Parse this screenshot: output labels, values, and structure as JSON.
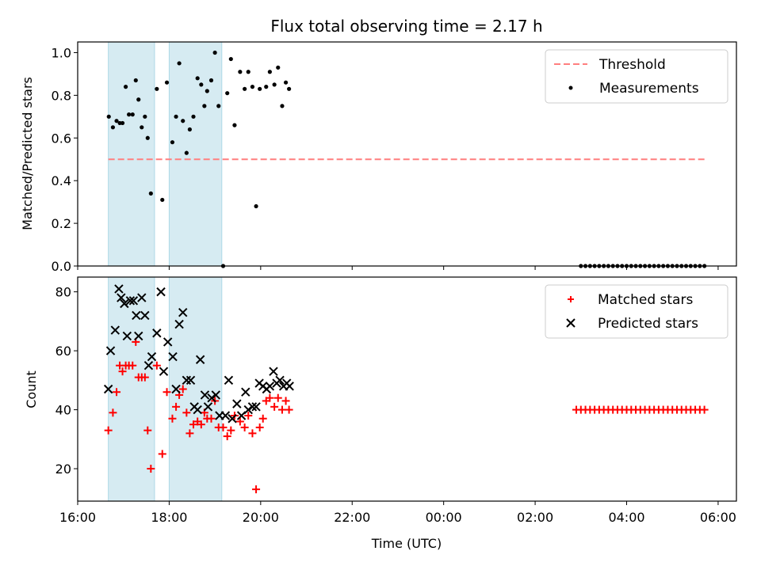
{
  "figure": {
    "title": "Flux total observing time = 2.17 h",
    "xlabel": "Time (UTC)",
    "xticks": [
      "16:00",
      "18:00",
      "20:00",
      "22:00",
      "00:00",
      "02:00",
      "04:00",
      "06:00"
    ]
  },
  "chart_data": [
    {
      "type": "scatter",
      "ylabel": "Matched/Predicted stars",
      "xlim_hours": [
        16.0,
        30.4
      ],
      "ylim": [
        0,
        1.05
      ],
      "yticks": [
        "0.0",
        "0.2",
        "0.4",
        "0.6",
        "0.8",
        "1.0"
      ],
      "shaded_intervals_hours": [
        [
          16.67,
          17.68
        ],
        [
          18.0,
          19.15
        ]
      ],
      "threshold": {
        "name": "Threshold",
        "value": 0.5,
        "x_range_hours": [
          16.67,
          29.75
        ],
        "color": "#ff7f7f"
      },
      "series": [
        {
          "name": "Measurements",
          "color": "#000000",
          "x_hours": [
            16.68,
            16.77,
            16.85,
            16.92,
            16.98,
            17.05,
            17.12,
            17.2,
            17.27,
            17.33,
            17.4,
            17.47,
            17.53,
            17.6,
            17.73,
            17.85,
            17.95,
            18.07,
            18.15,
            18.22,
            18.3,
            18.38,
            18.45,
            18.53,
            18.62,
            18.7,
            18.77,
            18.83,
            18.92,
            19.0,
            19.08,
            19.18,
            19.27,
            19.35,
            19.43,
            19.55,
            19.65,
            19.73,
            19.82,
            19.9,
            19.98,
            20.12,
            20.2,
            20.3,
            20.38,
            20.47,
            20.55,
            20.62,
            27.0,
            27.1,
            27.2,
            27.3,
            27.4,
            27.5,
            27.6,
            27.7,
            27.8,
            27.9,
            28.0,
            28.1,
            28.2,
            28.3,
            28.4,
            28.5,
            28.6,
            28.7,
            28.8,
            28.9,
            29.0,
            29.1,
            29.2,
            29.3,
            29.4,
            29.5,
            29.6,
            29.7
          ],
          "y": [
            0.7,
            0.65,
            0.68,
            0.67,
            0.67,
            0.84,
            0.71,
            0.71,
            0.87,
            0.78,
            0.65,
            0.7,
            0.6,
            0.34,
            0.83,
            0.31,
            0.86,
            0.58,
            0.7,
            0.95,
            0.68,
            0.53,
            0.64,
            0.7,
            0.88,
            0.85,
            0.75,
            0.82,
            0.87,
            1.0,
            0.75,
            0.0,
            0.81,
            0.97,
            0.66,
            0.91,
            0.83,
            0.91,
            0.84,
            0.28,
            0.83,
            0.84,
            0.91,
            0.85,
            0.93,
            0.75,
            0.86,
            0.83,
            0.0,
            0.0,
            0.0,
            0.0,
            0.0,
            0.0,
            0.0,
            0.0,
            0.0,
            0.0,
            0.0,
            0.0,
            0.0,
            0.0,
            0.0,
            0.0,
            0.0,
            0.0,
            0.0,
            0.0,
            0.0,
            0.0,
            0.0,
            0.0,
            0.0,
            0.0,
            0.0,
            0.0
          ]
        }
      ],
      "legend": {
        "position": "top-right",
        "entries": [
          "Threshold",
          "Measurements"
        ]
      }
    },
    {
      "type": "scatter",
      "ylabel": "Count",
      "xlim_hours": [
        16.0,
        30.4
      ],
      "ylim": [
        9,
        85
      ],
      "yticks": [
        "20",
        "40",
        "60",
        "80"
      ],
      "shaded_intervals_hours": [
        [
          16.67,
          17.68
        ],
        [
          18.0,
          19.15
        ]
      ],
      "series": [
        {
          "name": "Matched stars",
          "marker": "plus",
          "color": "#ff0000",
          "x_hours": [
            16.67,
            16.77,
            16.85,
            16.92,
            16.98,
            17.05,
            17.12,
            17.2,
            17.27,
            17.33,
            17.4,
            17.47,
            17.53,
            17.6,
            17.73,
            17.85,
            17.95,
            18.07,
            18.15,
            18.22,
            18.3,
            18.38,
            18.45,
            18.53,
            18.62,
            18.7,
            18.77,
            18.83,
            18.92,
            19.0,
            19.08,
            19.18,
            19.27,
            19.35,
            19.43,
            19.55,
            19.65,
            19.73,
            19.82,
            19.9,
            19.98,
            20.05,
            20.12,
            20.2,
            20.3,
            20.38,
            20.47,
            20.55,
            20.62,
            26.9,
            27.0,
            27.1,
            27.2,
            27.3,
            27.4,
            27.5,
            27.6,
            27.7,
            27.8,
            27.9,
            28.0,
            28.1,
            28.2,
            28.3,
            28.4,
            28.5,
            28.6,
            28.7,
            28.8,
            28.9,
            29.0,
            29.1,
            29.2,
            29.3,
            29.4,
            29.5,
            29.6,
            29.7
          ],
          "y": [
            33,
            39,
            46,
            55,
            53,
            55,
            55,
            55,
            63,
            51,
            51,
            51,
            33,
            20,
            55,
            25,
            46,
            37,
            41,
            45,
            47,
            39,
            32,
            35,
            36,
            35,
            39,
            37,
            37,
            43,
            34,
            34,
            31,
            33,
            38,
            36,
            34,
            38,
            32,
            13,
            34,
            37,
            43,
            44,
            41,
            44,
            40,
            43,
            40,
            40,
            40,
            40,
            40,
            40,
            40,
            40,
            40,
            40,
            40,
            40,
            40,
            40,
            40,
            40,
            40,
            40,
            40,
            40,
            40,
            40,
            40,
            40,
            40,
            40,
            40,
            40,
            40,
            40
          ]
        },
        {
          "name": "Predicted stars",
          "marker": "x",
          "color": "#000000",
          "x_hours": [
            16.67,
            16.72,
            16.82,
            16.9,
            16.95,
            17.02,
            17.08,
            17.15,
            17.22,
            17.28,
            17.33,
            17.4,
            17.47,
            17.55,
            17.62,
            17.73,
            17.82,
            17.88,
            17.97,
            18.08,
            18.15,
            18.22,
            18.3,
            18.38,
            18.47,
            18.55,
            18.62,
            18.68,
            18.78,
            18.85,
            18.93,
            19.02,
            19.1,
            19.23,
            19.3,
            19.38,
            19.48,
            19.58,
            19.67,
            19.73,
            19.82,
            19.9,
            19.97,
            20.05,
            20.13,
            20.2,
            20.28,
            20.35,
            20.42,
            20.5,
            20.57,
            20.63
          ],
          "y": [
            47,
            60,
            67,
            81,
            78,
            76,
            65,
            77,
            77,
            72,
            65,
            78,
            72,
            55,
            58,
            66,
            80,
            53,
            63,
            58,
            47,
            69,
            73,
            50,
            50,
            41,
            40,
            57,
            45,
            41,
            44,
            45,
            38,
            38,
            50,
            37,
            42,
            38,
            46,
            40,
            41,
            41,
            49,
            48,
            47,
            48,
            53,
            49,
            50,
            48,
            49,
            48
          ]
        }
      ],
      "legend": {
        "position": "top-right",
        "entries": [
          "Matched stars",
          "Predicted stars"
        ]
      }
    }
  ]
}
